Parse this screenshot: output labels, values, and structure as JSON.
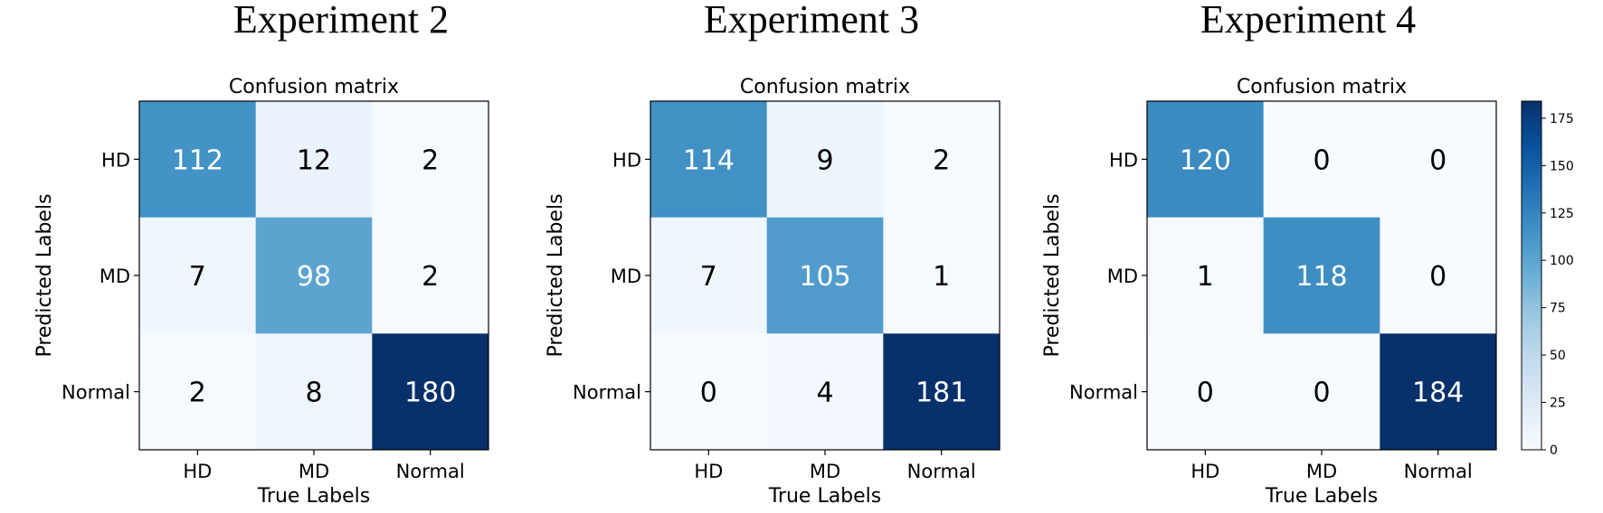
{
  "chart_data": [
    {
      "type": "heatmap",
      "panel_title": "Experiment 2",
      "title": "Confusion matrix",
      "xlabel": "True Labels",
      "ylabel": "Predicted Labels",
      "x_categories": [
        "HD",
        "MD",
        "Normal"
      ],
      "y_categories": [
        "HD",
        "MD",
        "Normal"
      ],
      "values": [
        [
          112,
          12,
          2
        ],
        [
          7,
          98,
          2
        ],
        [
          2,
          8,
          180
        ]
      ],
      "colormap": "Blues"
    },
    {
      "type": "heatmap",
      "panel_title": "Experiment 3",
      "title": "Confusion matrix",
      "xlabel": "True Labels",
      "ylabel": "Predicted Labels",
      "x_categories": [
        "HD",
        "MD",
        "Normal"
      ],
      "y_categories": [
        "HD",
        "MD",
        "Normal"
      ],
      "values": [
        [
          114,
          9,
          2
        ],
        [
          7,
          105,
          1
        ],
        [
          0,
          4,
          181
        ]
      ],
      "colormap": "Blues"
    },
    {
      "type": "heatmap",
      "panel_title": "Experiment 4",
      "title": "Confusion matrix",
      "xlabel": "True Labels",
      "ylabel": "Predicted Labels",
      "x_categories": [
        "HD",
        "MD",
        "Normal"
      ],
      "y_categories": [
        "HD",
        "MD",
        "Normal"
      ],
      "values": [
        [
          120,
          0,
          0
        ],
        [
          1,
          118,
          0
        ],
        [
          0,
          0,
          184
        ]
      ],
      "colormap": "Blues",
      "colorbar": {
        "range": [
          0,
          184
        ],
        "ticks": [
          0,
          25,
          50,
          75,
          100,
          125,
          150,
          175
        ]
      }
    }
  ],
  "colors": {
    "text_dark": "#000000",
    "text_light": "#ffffff",
    "axis_frame": "#000000"
  }
}
